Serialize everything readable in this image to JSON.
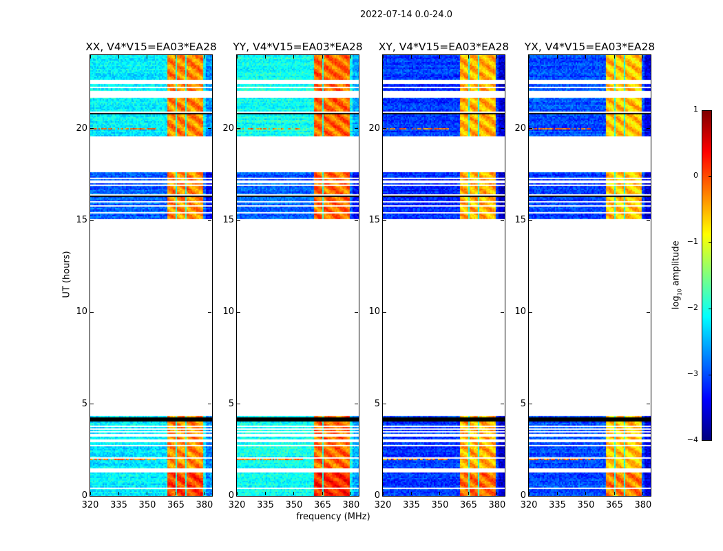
{
  "figure": {
    "suptitle": "2022-07-14 0.0-24.0",
    "xlabel": "frequency (MHz)",
    "ylabel": "UT (hours)",
    "colorbar": {
      "label_main": "log",
      "label_sub": "10",
      "label_rest": " amplitude",
      "ticks": [
        "1",
        "0",
        "−1",
        "−2",
        "−3",
        "−4"
      ],
      "range": [
        -4,
        1
      ],
      "colormap": "jet"
    }
  },
  "chart_data": [
    {
      "type": "heatmap",
      "title": "XX, V4*V15=EA03*EA28",
      "xlim": [
        320,
        384
      ],
      "ylim": [
        0,
        24
      ],
      "xticks": [
        320,
        335,
        350,
        365,
        380
      ],
      "yticks": [
        0,
        5,
        10,
        15,
        20
      ],
      "data_time_ranges": [
        [
          0,
          4.35
        ],
        [
          15.1,
          17.62
        ],
        [
          19.55,
          24
        ]
      ],
      "flagged_rows_hours": [
        0.4,
        1.35,
        1.45,
        2.05,
        2.75,
        3.0,
        3.3,
        3.5,
        3.65,
        3.8,
        15.4,
        15.8,
        16.0,
        16.4,
        16.9,
        17.1,
        17.3,
        20.89,
        21.75,
        21.9,
        22.01,
        22.24,
        22.46,
        22.57
      ],
      "dark_rows_hours": [
        4.1,
        4.2,
        16.35,
        17.85,
        20.8
      ],
      "rfi_rows_hours": [
        2.0,
        16.0,
        20.0
      ],
      "background_log_amp": -2.2,
      "evening_background_log_amp": -2.9,
      "band_segments_mhz": [
        [
          360.5,
          364.8
        ],
        [
          365.4,
          369.8
        ],
        [
          370.4,
          374.8
        ],
        [
          375.3,
          379.3
        ]
      ],
      "band_log_amp": -0.3
    },
    {
      "type": "heatmap",
      "title": "YY, V4*V15=EA03*EA28",
      "xlim": [
        320,
        384
      ],
      "ylim": [
        0,
        24
      ],
      "xticks": [
        320,
        335,
        350,
        365,
        380
      ],
      "yticks": [
        0,
        5,
        10,
        15,
        20
      ],
      "data_time_ranges": [
        [
          0,
          4.35
        ],
        [
          15.1,
          17.62
        ],
        [
          19.55,
          24
        ]
      ],
      "flagged_rows_hours": [
        0.4,
        1.35,
        1.45,
        2.05,
        2.75,
        3.0,
        3.3,
        3.5,
        3.65,
        3.8,
        15.4,
        15.8,
        16.0,
        16.4,
        16.9,
        17.1,
        17.3,
        20.89,
        21.75,
        21.9,
        22.01,
        22.24,
        22.46,
        22.57
      ],
      "dark_rows_hours": [
        4.1,
        4.2,
        16.35,
        17.85,
        20.8
      ],
      "rfi_rows_hours": [
        2.0,
        16.0,
        20.0
      ],
      "background_log_amp": -2.05,
      "evening_background_log_amp": -2.9,
      "band_segments_mhz": [
        [
          360.2,
          364.6
        ],
        [
          365.2,
          369.6
        ],
        [
          370.2,
          374.6
        ],
        [
          375.2,
          379.6
        ]
      ],
      "band_log_amp": -0.15
    },
    {
      "type": "heatmap",
      "title": "XY, V4*V15=EA03*EA28",
      "xlim": [
        320,
        384
      ],
      "ylim": [
        0,
        24
      ],
      "xticks": [
        320,
        335,
        350,
        365,
        380
      ],
      "yticks": [
        0,
        5,
        10,
        15,
        20
      ],
      "data_time_ranges": [
        [
          0,
          4.35
        ],
        [
          15.1,
          17.62
        ],
        [
          19.55,
          24
        ]
      ],
      "flagged_rows_hours": [
        0.4,
        1.35,
        1.45,
        2.05,
        2.75,
        3.0,
        3.3,
        3.5,
        3.65,
        3.8,
        15.4,
        15.8,
        16.0,
        16.4,
        16.9,
        17.1,
        17.3,
        20.89,
        21.75,
        21.9,
        22.01,
        22.24,
        22.46,
        22.57
      ],
      "dark_rows_hours": [
        4.1,
        4.2,
        16.35,
        17.85,
        20.8
      ],
      "rfi_rows_hours": [
        2.0,
        16.0,
        20.0
      ],
      "background_log_amp": -3.1,
      "evening_background_log_amp": -3.2,
      "band_segments_mhz": [
        [
          360.5,
          364.8
        ],
        [
          365.4,
          369.8
        ],
        [
          370.4,
          374.8
        ],
        [
          375.3,
          379.3
        ]
      ],
      "band_log_amp": -0.5
    },
    {
      "type": "heatmap",
      "title": "YX, V4*V15=EA03*EA28",
      "xlim": [
        320,
        384
      ],
      "ylim": [
        0,
        24
      ],
      "xticks": [
        320,
        335,
        350,
        365,
        380
      ],
      "yticks": [
        0,
        5,
        10,
        15,
        20
      ],
      "data_time_ranges": [
        [
          0,
          4.35
        ],
        [
          15.1,
          17.62
        ],
        [
          19.55,
          24
        ]
      ],
      "flagged_rows_hours": [
        0.4,
        1.35,
        1.45,
        2.05,
        2.75,
        3.0,
        3.3,
        3.5,
        3.65,
        3.8,
        15.4,
        15.8,
        16.0,
        16.4,
        16.9,
        17.1,
        17.3,
        20.89,
        21.75,
        21.9,
        22.01,
        22.24,
        22.46,
        22.57
      ],
      "dark_rows_hours": [
        4.1,
        4.2,
        16.35,
        17.85,
        20.8
      ],
      "rfi_rows_hours": [
        2.0,
        16.0,
        20.0
      ],
      "background_log_amp": -3.0,
      "evening_background_log_amp": -3.1,
      "band_segments_mhz": [
        [
          360.5,
          364.8
        ],
        [
          365.4,
          369.8
        ],
        [
          370.4,
          374.8
        ],
        [
          375.3,
          379.3
        ]
      ],
      "band_log_amp": -0.6
    }
  ]
}
